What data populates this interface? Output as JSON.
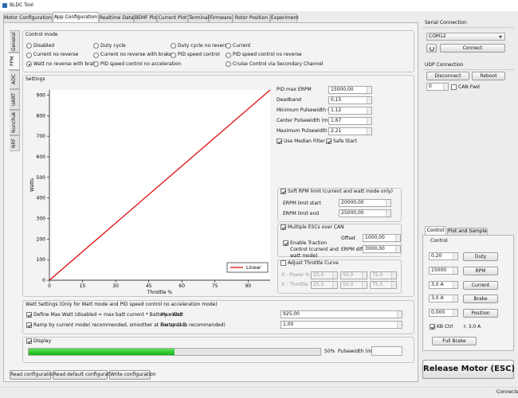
{
  "window": {
    "title": "BLDC Tool",
    "status": "Connected"
  },
  "tabs": {
    "items": [
      "Motor Configuration",
      "App Configuration",
      "Realtime Data",
      "BEMF Plot",
      "Current Plot",
      "Terminal",
      "Firmware",
      "Rotor Position",
      "Experiment"
    ],
    "active": 1
  },
  "side_tabs": {
    "items": [
      "General",
      "PPM",
      "ADC",
      "UART",
      "Nunchuk",
      "NRF"
    ],
    "active": 1
  },
  "control_mode": {
    "title": "Control mode",
    "options": [
      {
        "label": "Disabled",
        "selected": false
      },
      {
        "label": "Duty cycle",
        "selected": false
      },
      {
        "label": "Duty cycle no reverse",
        "selected": false
      },
      {
        "label": "Current",
        "selected": false
      },
      {
        "label": "Current no reverse",
        "selected": false
      },
      {
        "label": "Current no reverse with brake",
        "selected": false
      },
      {
        "label": "PID speed control",
        "selected": false
      },
      {
        "label": "PID speed control no reverse",
        "selected": false
      },
      {
        "label": "Watt no reverse with brake",
        "selected": true
      },
      {
        "label": "PID speed control no acceleration",
        "selected": false
      },
      {
        "label": "Cruise Control via Secondary Channel",
        "selected": false
      }
    ]
  },
  "settings": {
    "title": "Settings",
    "fields": [
      {
        "label": "PID max ERPM",
        "value": "15000,00"
      },
      {
        "label": "Deadband",
        "value": "0,15"
      },
      {
        "label": "Minimum Pulsewidth (ms)",
        "value": "1,12"
      },
      {
        "label": "Center Pulsewidth (ms)",
        "value": "1,67"
      },
      {
        "label": "Maximum Pulsewidth (ms)",
        "value": "2,21"
      }
    ],
    "use_median_filter": {
      "label": "Use Median Filter",
      "checked": true
    },
    "safe_start": {
      "label": "Safe Start",
      "checked": true
    }
  },
  "soft_rpm": {
    "checkbox": {
      "label": "Soft RPM limit (current and watt mode only)",
      "checked": true
    },
    "start": {
      "label": "ERPM limit start",
      "value": "20000,00"
    },
    "end": {
      "label": "ERPM limit end",
      "value": "25000,00"
    }
  },
  "can": {
    "checkbox": {
      "label": "Multiple ESCs over CAN",
      "checked": true
    },
    "traction": {
      "label": "Enable Traction Control (current and watt mode)",
      "checked": true
    },
    "offset": {
      "label": "Offset",
      "value": "1000,00"
    },
    "erpm_diff": {
      "label": "ERPM diff",
      "value": "3000,00"
    }
  },
  "throttle_curve": {
    "checkbox": {
      "label": "Adjust Throttle Curve",
      "checked": false
    },
    "rows": [
      {
        "label": "X - Power %",
        "values": [
          "25,0",
          "50,0",
          "75,0"
        ]
      },
      {
        "label": "X - Throttle %",
        "values": [
          "25,0",
          "50,0",
          "75,0"
        ]
      }
    ]
  },
  "watt": {
    "title": "Watt Settings (Only for Watt mode and PID speed control no acceleration mode)",
    "define_max": {
      "label": "Define Max Watt (disabled = max batt current * Battery volts)",
      "checked": true
    },
    "max_watt": {
      "label": "Max Watt",
      "value": "925,00"
    },
    "ramp": {
      "label": "Ramp by current mode( recommended, smoother at low speed)",
      "checked": true
    },
    "factor": {
      "label": "Factor (1 is recommended)",
      "value": "1,00"
    }
  },
  "display": {
    "checkbox": {
      "label": "Display",
      "checked": true
    },
    "progress": {
      "value": 50,
      "label": "50%"
    },
    "pulsewidth_label": "Pulsewidth (ms):"
  },
  "buttons": [
    "Read configuration",
    "Read default configuration",
    "Write configuration"
  ],
  "serial": {
    "title": "Serial Connection",
    "port": "COM12",
    "connect": "Connect"
  },
  "udp": {
    "title": "UDP Connection",
    "disconnect": "Disconnect",
    "reboot": "Reboot",
    "id": "0",
    "can_fwd": {
      "label": "CAN Fwd",
      "checked": false
    }
  },
  "control": {
    "tabs": [
      "Control",
      "Plot and Sample"
    ],
    "title": "Control",
    "rows": [
      {
        "value": "0,20",
        "button": "Duty"
      },
      {
        "value": "15000",
        "button": "RPM"
      },
      {
        "value": "3,0 A",
        "button": "Current"
      },
      {
        "value": "3,0 A",
        "button": "Brake"
      },
      {
        "value": "0,000",
        "button": "Position"
      }
    ],
    "kb_ctrl": {
      "label": "KB Ctrl",
      "checked": true
    },
    "current": "I: 3,0 A",
    "full_brake": "Full Brake"
  },
  "release": "Release Motor (ESC)",
  "chart_data": {
    "type": "line",
    "x_label": "Throttle %",
    "y_label": "Watts",
    "x": [
      0,
      100
    ],
    "series": [
      {
        "name": "Linear",
        "color": "#e00000",
        "values": [
          0,
          925
        ]
      }
    ],
    "xlim": [
      0,
      100
    ],
    "ylim": [
      0,
      925
    ],
    "xticks": [
      0,
      15,
      30,
      45,
      60,
      75,
      90
    ],
    "yticks": [
      0,
      100,
      200,
      300,
      400,
      500,
      600,
      700,
      800,
      900
    ],
    "legend": "lower right"
  }
}
